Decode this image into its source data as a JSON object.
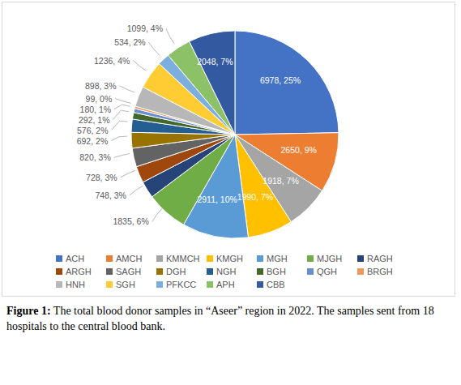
{
  "chart_data": {
    "type": "pie",
    "categories": [
      "ACH",
      "AMCH",
      "KMMCH",
      "KMGH",
      "MGH",
      "MJGH",
      "RAGH",
      "ARGH",
      "SAGH",
      "DGH",
      "NGH",
      "BGH",
      "QGH",
      "BRGH",
      "HNH",
      "SGH",
      "PFKCC",
      "APH",
      "CBB"
    ],
    "values": [
      6978,
      2650,
      1918,
      1990,
      2911,
      1835,
      748,
      728,
      820,
      692,
      576,
      292,
      180,
      99,
      898,
      1236,
      534,
      1099,
      2048
    ],
    "value_labels": [
      "6978, 25%",
      "2650, 9%",
      "1918, 7%",
      "1990, 7%",
      "2911, 10%",
      "1835, 6%",
      "748, 3%",
      "728, 3%",
      "820, 3%",
      "692, 2%",
      "576, 2%",
      "292, 1%",
      "180, 1%",
      "99, 0%",
      "898, 3%",
      "1236, 4%",
      "534, 2%",
      "1099, 4%",
      "2048, 7%"
    ],
    "colors": [
      "#4472C4",
      "#ED7D31",
      "#A5A5A5",
      "#FFC000",
      "#5B9BD5",
      "#70AD47",
      "#264478",
      "#9E480E",
      "#636363",
      "#997300",
      "#255E91",
      "#43682B",
      "#698ED0",
      "#F1975A",
      "#B7B7B7",
      "#FFCD33",
      "#7CAFDD",
      "#8CC168",
      "#335AA1"
    ],
    "data_labels": true,
    "legend": "bottom",
    "caption_label": "Figure 1:",
    "caption": "The total blood donor samples in “Aseer” region in 2022. The samples sent from 18 hospitals to the central blood bank."
  }
}
